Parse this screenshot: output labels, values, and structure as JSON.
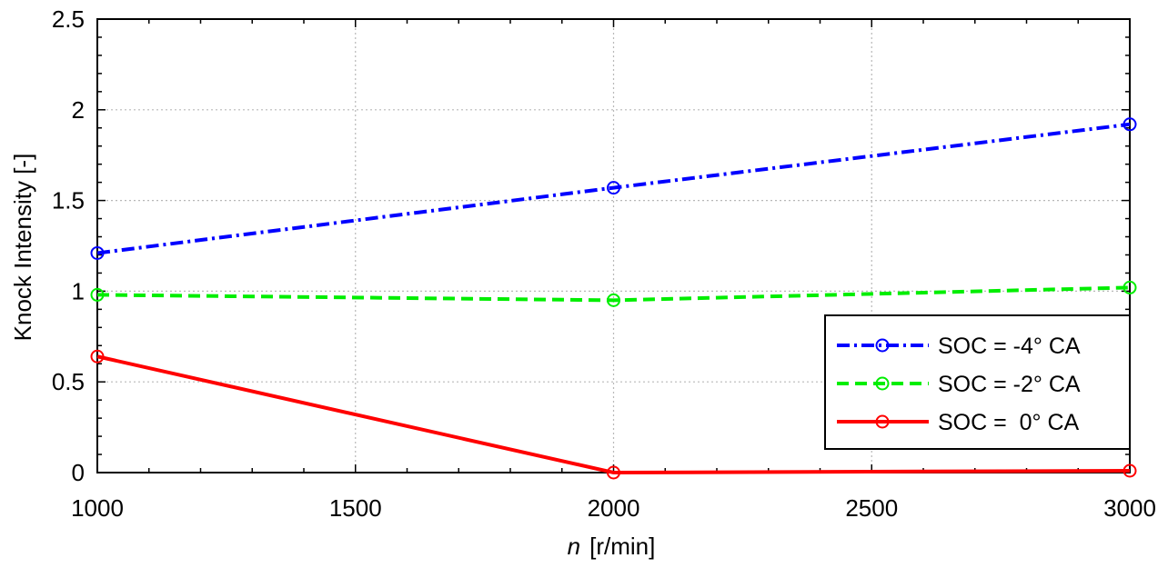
{
  "chart_data": {
    "type": "line",
    "xlabel_var": "n",
    "xlabel_unit": "[r/min]",
    "ylabel": "Knock Intensity [-]",
    "xlim": [
      1000,
      3000
    ],
    "ylim": [
      0,
      2.5
    ],
    "xticks": [
      1000,
      1500,
      2000,
      2500,
      3000
    ],
    "yticks": [
      0,
      0.5,
      1,
      1.5,
      2,
      2.5
    ],
    "ytick_labels": [
      "0",
      "0.5",
      "1",
      "1.5",
      "2",
      "2.5"
    ],
    "grid": true,
    "legend_position": "lower-right",
    "x": [
      1000,
      2000,
      3000
    ],
    "series": [
      {
        "name": "SOC = -4° CA",
        "values": [
          1.21,
          1.57,
          1.92
        ],
        "color": "#0000ff",
        "dash": "dash-dot",
        "marker": "circle"
      },
      {
        "name": "SOC = -2° CA",
        "values": [
          0.98,
          0.95,
          1.02
        ],
        "color": "#00ee00",
        "dash": "dashed",
        "marker": "circle"
      },
      {
        "name": "SOC =  0° CA",
        "values": [
          0.64,
          0.0,
          0.01
        ],
        "color": "#ff0000",
        "dash": "solid",
        "marker": "circle"
      }
    ]
  }
}
